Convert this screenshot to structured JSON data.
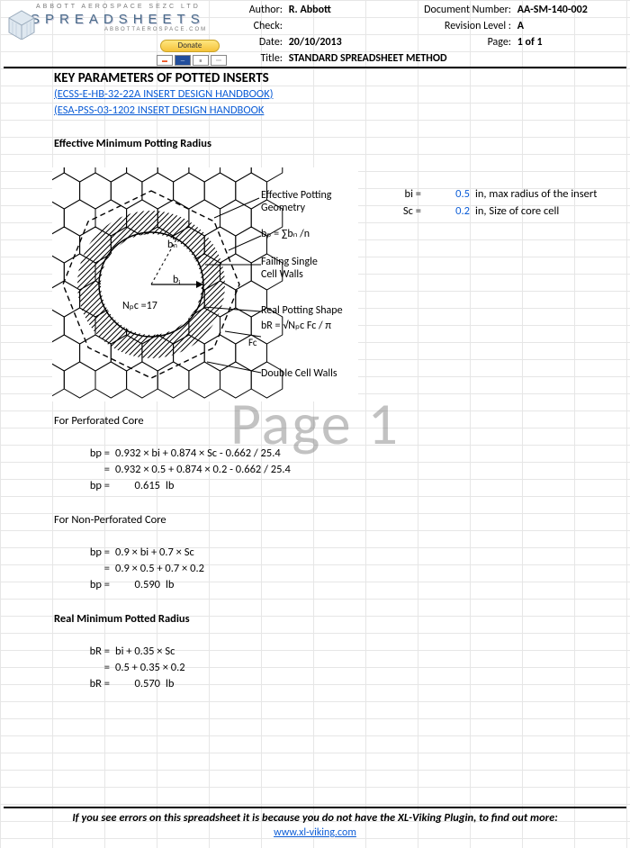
{
  "colors": {
    "grid": "#e6e6e6",
    "link": "#0b5cd6",
    "watermark": "rgba(120,120,120,0.45)",
    "logo_text": "#4a6b8a",
    "logo_sub": "#7a7a7a"
  },
  "logo": {
    "line1": "ABBOTT AEROSPACE SEZC LTD",
    "line2": "SPREADSHEETS",
    "line3": "ABBOTTAEROSPACE.COM",
    "donate_label": "Donate"
  },
  "meta": {
    "author_label": "Author:",
    "author": "R. Abbott",
    "check_label": "Check:",
    "check": "",
    "date_label": "Date:",
    "date": "20/10/2013",
    "title_label": "Title:",
    "title": "STANDARD SPREADSHEET METHOD",
    "docnum_label": "Document Number:",
    "docnum": "AA-SM-140-002",
    "rev_label": "Revision Level :",
    "rev": "A",
    "page_label": "Page:",
    "page": "1 of 1"
  },
  "headings": {
    "main": "KEY PARAMETERS OF POTTED INSERTS",
    "link1": "(ECSS-E-HB-32-22A INSERT DESIGN HANDBOOK)",
    "link2": "(ESA-PSS-03-1202 INSERT DESIGN HANDBOOK",
    "sub1": "Effective Minimum Potting Radius",
    "perforated": "For Perforated Core",
    "nonperf": "For Non-Perforated Core",
    "realmin": "Real Minimum Potted Radius"
  },
  "inputs": {
    "bi_label": "bi =",
    "bi_value": "0.5",
    "bi_desc": "in, max radius of the insert",
    "sc_label": "Sc =",
    "sc_value": "0.2",
    "sc_desc": "in, Size of core cell"
  },
  "calc_perf": {
    "line1_l": "bp =",
    "line1_r": "0.932 × bi + 0.874 × Sc - 0.662 / 25.4",
    "line2_l": "=",
    "line2_r": "0.932 × 0.5 + 0.874 × 0.2 - 0.662 / 25.4",
    "res_l": "bp =",
    "res_v": "0.615",
    "unit": "lb"
  },
  "calc_nonperf": {
    "line1_l": "bp =",
    "line1_r": "0.9 × bi + 0.7 × Sc",
    "line2_l": "=",
    "line2_r": "0.9 × 0.5 + 0.7 × 0.2",
    "res_l": "bp =",
    "res_v": "0.590",
    "unit": "lb"
  },
  "calc_real": {
    "line1_l": "bR =",
    "line1_r": "bi + 0.35 × Sc",
    "line2_l": "=",
    "line2_r": "0.5 + 0.35 × 0.2",
    "res_l": "bR =",
    "res_v": "0.570",
    "unit": "lb"
  },
  "diagram_labels": {
    "eff_pot": "Effective Potting",
    "geometry": "Geometry",
    "bp_formula": "bₚ =  ∑bₙ /n",
    "bn": "bₙ",
    "bi": "bᵢ",
    "npc": "Nₚc =17",
    "failing": "Failing Single",
    "cellwalls": "Cell Walls",
    "realpot": "Real Potting Shape",
    "bR_formula": "bR = √Nₚc Fc / π",
    "fc": "Fc",
    "double": "Double Cell Walls"
  },
  "watermark": "Page 1",
  "footer": {
    "text": "If you see errors on this spreadsheet it is because you do not have the XL-Viking Plugin, to find out more:",
    "link": "www.xl-viking.com"
  }
}
